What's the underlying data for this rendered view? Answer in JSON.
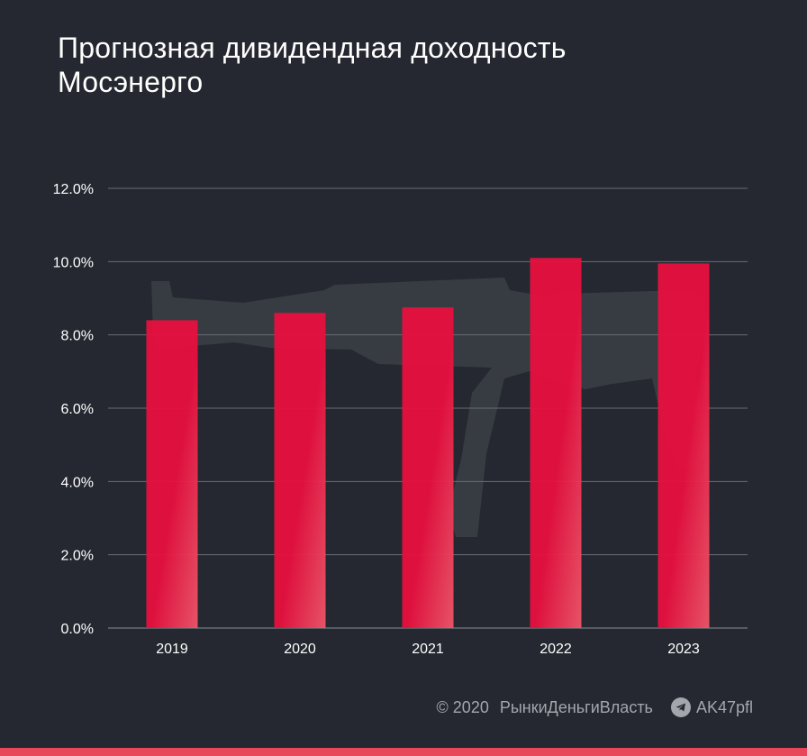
{
  "chart_data": {
    "type": "bar",
    "title_lines": [
      "Прогнозная дивидендная доходность",
      "Мосэнерго"
    ],
    "categories": [
      "2019",
      "2020",
      "2021",
      "2022",
      "2023"
    ],
    "values": [
      8.4,
      8.6,
      8.75,
      10.1,
      9.95
    ],
    "ylim": [
      0,
      12
    ],
    "yticks": [
      0,
      2,
      4,
      6,
      8,
      10,
      12
    ],
    "ytick_labels": [
      "0.0%",
      "2.0%",
      "4.0%",
      "6.0%",
      "8.0%",
      "10.0%",
      "12.0%"
    ],
    "grid": true,
    "bar_color": "#e8103f",
    "bar_color_light": "#f0566a"
  },
  "footer": {
    "copyright": "© 2020",
    "brand": "РынкиДеньгиВласть",
    "telegram": "AK47pfl"
  },
  "icons": {
    "telegram": "telegram-icon",
    "watermark": "rifle-watermark-icon"
  },
  "colors": {
    "background": "#252830",
    "accent": "#e8475a",
    "text": "#ffffff",
    "muted": "#a3a6ad"
  }
}
